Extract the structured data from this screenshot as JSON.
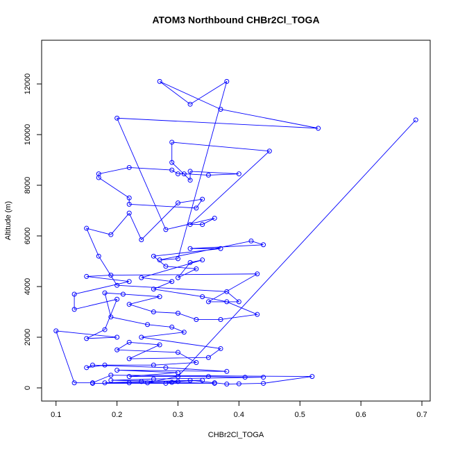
{
  "chart_data": {
    "type": "line",
    "title": "ATOM3 Northbound CHBr2Cl_TOGA",
    "xlabel": "CHBr2Cl_TOGA",
    "ylabel": "Altitude (m)",
    "color": "#0000ff",
    "markers": true,
    "xlim": [
      0.0764,
      0.7136
    ],
    "ylim": [
      -520,
      13726
    ],
    "xticks": [
      0.1,
      0.2,
      0.3,
      0.4,
      0.5,
      0.6,
      0.7
    ],
    "yticks": [
      0,
      2000,
      4000,
      6000,
      8000,
      10000,
      12000
    ],
    "x": [
      0.69,
      0.3,
      0.25,
      0.28,
      0.32,
      0.36,
      0.38,
      0.4,
      0.44,
      0.52,
      0.19,
      0.16,
      0.13,
      0.1,
      0.2,
      0.15,
      0.18,
      0.2,
      0.13,
      0.13,
      0.22,
      0.15,
      0.19,
      0.43,
      0.35,
      0.4,
      0.38,
      0.2,
      0.17,
      0.15,
      0.19,
      0.22,
      0.24,
      0.3,
      0.34,
      0.33,
      0.22,
      0.22,
      0.17,
      0.17,
      0.22,
      0.29,
      0.3,
      0.31,
      0.35,
      0.4,
      0.32,
      0.32,
      0.29,
      0.29,
      0.45,
      0.32,
      0.34,
      0.36,
      0.28,
      0.2,
      0.53,
      0.37,
      0.27,
      0.32,
      0.38,
      0.3,
      0.27,
      0.42,
      0.44,
      0.32,
      0.37,
      0.26,
      0.28,
      0.33,
      0.3,
      0.32,
      0.34,
      0.24,
      0.29,
      0.26,
      0.34,
      0.38,
      0.43,
      0.37,
      0.33,
      0.3,
      0.26,
      0.22,
      0.27,
      0.21,
      0.18,
      0.19,
      0.25,
      0.29,
      0.31,
      0.24,
      0.37,
      0.35,
      0.22,
      0.27,
      0.22,
      0.2,
      0.3,
      0.33,
      0.26,
      0.18,
      0.15,
      0.16,
      0.28,
      0.38,
      0.2,
      0.3,
      0.22,
      0.35,
      0.41,
      0.44,
      0.26,
      0.19,
      0.3,
      0.34,
      0.24,
      0.18,
      0.22,
      0.29,
      0.36,
      0.16
    ],
    "series": [
      {
        "name": "Altitude (m)",
        "values": [
          10580,
          450,
          200,
          180,
          300,
          200,
          150,
          160,
          180,
          450,
          500,
          200,
          200,
          2250,
          2000,
          1950,
          2300,
          3500,
          3100,
          3700,
          4200,
          4400,
          4450,
          4500,
          3400,
          3400,
          3800,
          4050,
          5200,
          6300,
          6050,
          6900,
          5850,
          7300,
          7450,
          7100,
          7250,
          7500,
          8300,
          8450,
          8700,
          8600,
          8450,
          8450,
          8400,
          8450,
          8550,
          8200,
          8900,
          9700,
          9350,
          6450,
          6450,
          6700,
          6250,
          10650,
          10250,
          11000,
          12100,
          11200,
          12100,
          5100,
          5050,
          5800,
          5650,
          5500,
          5500,
          5200,
          4800,
          4700,
          4350,
          4950,
          5050,
          4350,
          4200,
          3900,
          3600,
          3400,
          2900,
          2700,
          2700,
          2950,
          3000,
          3300,
          3600,
          3700,
          3750,
          2800,
          2500,
          2400,
          2200,
          2000,
          1550,
          1200,
          1150,
          1700,
          1800,
          1500,
          1400,
          1000,
          900,
          900,
          800,
          900,
          800,
          650,
          700,
          600,
          450,
          450,
          420,
          420,
          350,
          300,
          250,
          300,
          250,
          200,
          200,
          220,
          180,
          180
        ]
      }
    ]
  }
}
